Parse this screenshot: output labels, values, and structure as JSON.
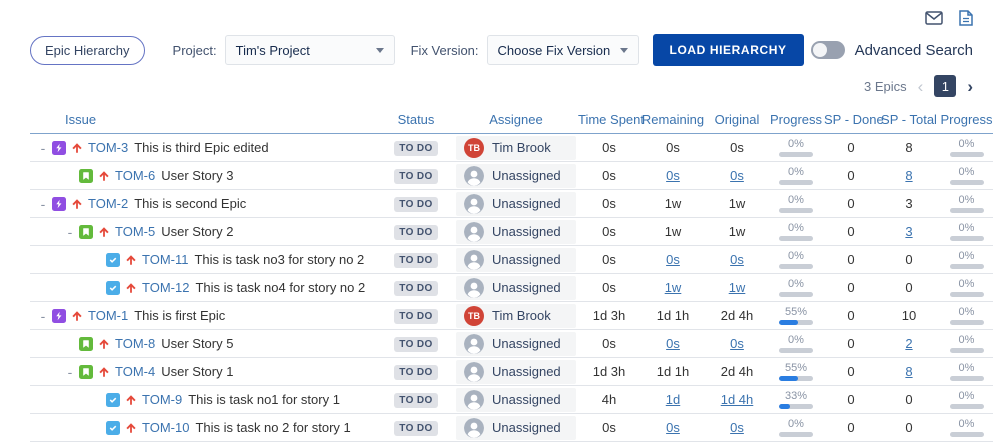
{
  "colors": {
    "header_blue": "#3b73af",
    "link_blue": "#3b73af",
    "epic_purple": "#904EE2",
    "story_green": "#63BA3C",
    "task_blue": "#4BADE8",
    "priority_red": "#E5493A",
    "load_button_blue": "#0747A6",
    "progress_fill_blue": "#2A7DE1",
    "status_badge_bg": "#DFE1E6",
    "status_badge_text": "#42526E",
    "avatar_red": "#D04437",
    "page_box_navy": "#344563"
  },
  "icons": {
    "mail": "envelope-icon",
    "report": "document-icon",
    "epic": "purple-lightning-icon",
    "story": "green-bookmark-icon",
    "task": "blue-check-icon",
    "priority": "red-up-arrow-icon",
    "unassigned": "gray-person-avatar"
  },
  "toolbar": {
    "epic_hierarchy_button": "Epic Hierarchy",
    "project_label": "Project:",
    "project_value": "Tim's Project",
    "fix_version_label": "Fix Version:",
    "fix_version_value": "Choose Fix Version",
    "load_button": "LOAD HIERARCHY",
    "advanced_search_label": "Advanced Search"
  },
  "pagination": {
    "count_label": "3 Epics",
    "prev_icon": "‹",
    "current_page": "1",
    "next_icon": "›"
  },
  "table": {
    "columns": [
      "Issue",
      "Status",
      "Assignee",
      "Time Spent",
      "Remaining",
      "Original",
      "Progress",
      "SP - Done",
      "SP - Total",
      "Progress"
    ],
    "rows": [
      {
        "indent": 0,
        "expander": true,
        "type": "epic",
        "key": "TOM-3",
        "summary": "This is third Epic edited",
        "status": "TO DO",
        "assignee": "Tim Brook",
        "avatar_initials": "TB",
        "time_spent": "0s",
        "remaining": "0s",
        "remaining_link": false,
        "original": "0s",
        "original_link": false,
        "progress_pct": 0,
        "progress_label": "0%",
        "sp_done": "0",
        "sp_total": "8",
        "sp_total_link": false,
        "sp_progress_pct": 0,
        "sp_progress_label": "0%"
      },
      {
        "indent": 1,
        "expander": false,
        "type": "story",
        "key": "TOM-6",
        "summary": "User Story 3",
        "status": "TO DO",
        "assignee": "Unassigned",
        "time_spent": "0s",
        "remaining": "0s",
        "remaining_link": true,
        "original": "0s",
        "original_link": true,
        "progress_pct": 0,
        "progress_label": "0%",
        "sp_done": "0",
        "sp_total": "8",
        "sp_total_link": true,
        "sp_progress_pct": 0,
        "sp_progress_label": "0%"
      },
      {
        "indent": 0,
        "expander": true,
        "type": "epic",
        "key": "TOM-2",
        "summary": "This is second Epic",
        "status": "TO DO",
        "assignee": "Unassigned",
        "time_spent": "0s",
        "remaining": "1w",
        "remaining_link": false,
        "original": "1w",
        "original_link": false,
        "progress_pct": 0,
        "progress_label": "0%",
        "sp_done": "0",
        "sp_total": "3",
        "sp_total_link": false,
        "sp_progress_pct": 0,
        "sp_progress_label": "0%"
      },
      {
        "indent": 1,
        "expander": true,
        "type": "story",
        "key": "TOM-5",
        "summary": "User Story 2",
        "status": "TO DO",
        "assignee": "Unassigned",
        "time_spent": "0s",
        "remaining": "1w",
        "remaining_link": false,
        "original": "1w",
        "original_link": false,
        "progress_pct": 0,
        "progress_label": "0%",
        "sp_done": "0",
        "sp_total": "3",
        "sp_total_link": true,
        "sp_progress_pct": 0,
        "sp_progress_label": "0%"
      },
      {
        "indent": 2,
        "expander": false,
        "type": "task",
        "key": "TOM-11",
        "summary": "This is task no3 for story no 2",
        "status": "TO DO",
        "assignee": "Unassigned",
        "time_spent": "0s",
        "remaining": "0s",
        "remaining_link": true,
        "original": "0s",
        "original_link": true,
        "progress_pct": 0,
        "progress_label": "0%",
        "sp_done": "0",
        "sp_total": "0",
        "sp_total_link": false,
        "sp_progress_pct": 0,
        "sp_progress_label": "0%"
      },
      {
        "indent": 2,
        "expander": false,
        "type": "task",
        "key": "TOM-12",
        "summary": "This is task no4 for story no 2",
        "status": "TO DO",
        "assignee": "Unassigned",
        "time_spent": "0s",
        "remaining": "1w",
        "remaining_link": true,
        "original": "1w",
        "original_link": true,
        "progress_pct": 0,
        "progress_label": "0%",
        "sp_done": "0",
        "sp_total": "0",
        "sp_total_link": false,
        "sp_progress_pct": 0,
        "sp_progress_label": "0%"
      },
      {
        "indent": 0,
        "expander": true,
        "type": "epic",
        "key": "TOM-1",
        "summary": "This is first Epic",
        "status": "TO DO",
        "assignee": "Tim Brook",
        "avatar_initials": "TB",
        "time_spent": "1d 3h",
        "remaining": "1d 1h",
        "remaining_link": false,
        "original": "2d 4h",
        "original_link": false,
        "progress_pct": 55,
        "progress_label": "55%",
        "sp_done": "0",
        "sp_total": "10",
        "sp_total_link": false,
        "sp_progress_pct": 0,
        "sp_progress_label": "0%"
      },
      {
        "indent": 1,
        "expander": false,
        "type": "story",
        "key": "TOM-8",
        "summary": "User Story 5",
        "status": "TO DO",
        "assignee": "Unassigned",
        "time_spent": "0s",
        "remaining": "0s",
        "remaining_link": true,
        "original": "0s",
        "original_link": true,
        "progress_pct": 0,
        "progress_label": "0%",
        "sp_done": "0",
        "sp_total": "2",
        "sp_total_link": true,
        "sp_progress_pct": 0,
        "sp_progress_label": "0%"
      },
      {
        "indent": 1,
        "expander": true,
        "type": "story",
        "key": "TOM-4",
        "summary": "User Story 1",
        "status": "TO DO",
        "assignee": "Unassigned",
        "time_spent": "1d 3h",
        "remaining": "1d 1h",
        "remaining_link": false,
        "original": "2d 4h",
        "original_link": false,
        "progress_pct": 55,
        "progress_label": "55%",
        "sp_done": "0",
        "sp_total": "8",
        "sp_total_link": true,
        "sp_progress_pct": 0,
        "sp_progress_label": "0%"
      },
      {
        "indent": 2,
        "expander": false,
        "type": "task",
        "key": "TOM-9",
        "summary": "This is task no1 for story 1",
        "status": "TO DO",
        "assignee": "Unassigned",
        "time_spent": "4h",
        "remaining": "1d",
        "remaining_link": true,
        "original": "1d 4h",
        "original_link": true,
        "progress_pct": 33,
        "progress_label": "33%",
        "sp_done": "0",
        "sp_total": "0",
        "sp_total_link": false,
        "sp_progress_pct": 0,
        "sp_progress_label": "0%"
      },
      {
        "indent": 2,
        "expander": false,
        "type": "task",
        "key": "TOM-10",
        "summary": "This is task no 2 for story 1",
        "status": "TO DO",
        "assignee": "Unassigned",
        "time_spent": "0s",
        "remaining": "0s",
        "remaining_link": true,
        "original": "0s",
        "original_link": true,
        "progress_pct": 0,
        "progress_label": "0%",
        "sp_done": "0",
        "sp_total": "0",
        "sp_total_link": false,
        "sp_progress_pct": 0,
        "sp_progress_label": "0%"
      }
    ]
  }
}
